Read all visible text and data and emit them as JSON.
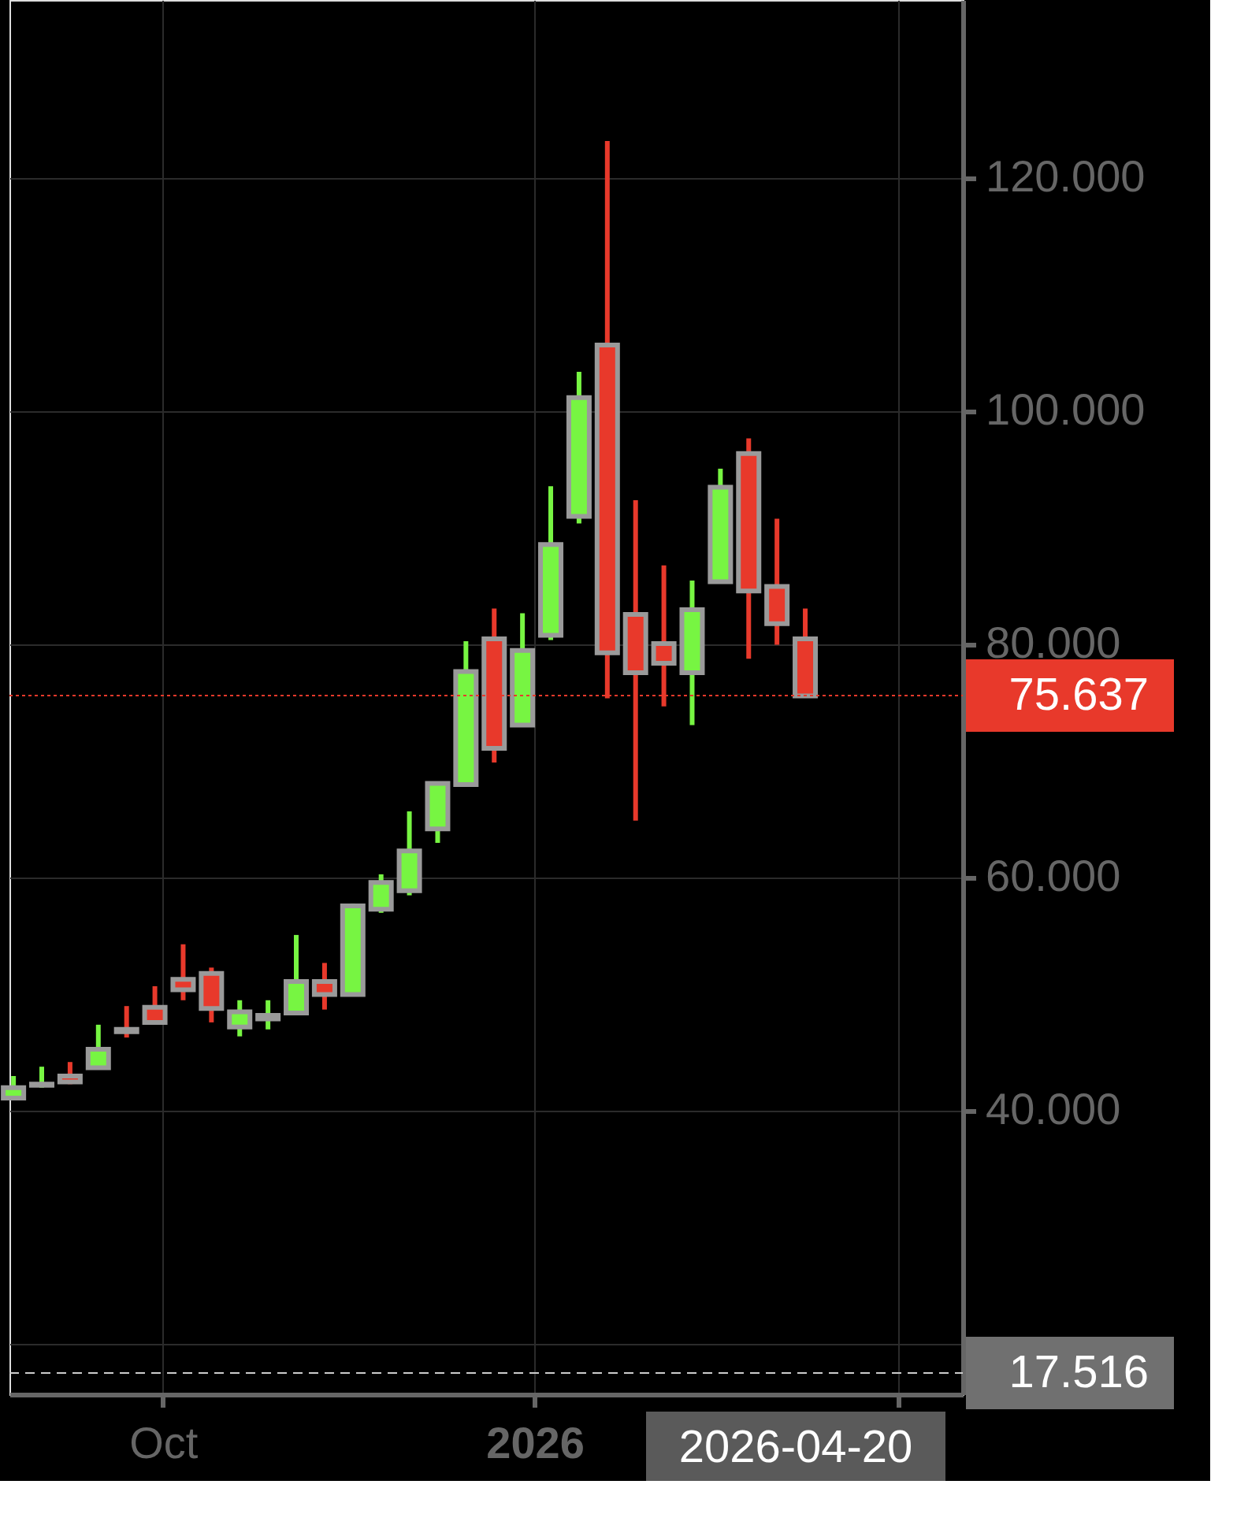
{
  "chart_data": {
    "type": "candlestick",
    "x": [
      "2025-08-25",
      "2025-09-01",
      "2025-09-08",
      "2025-09-15",
      "2025-09-22",
      "2025-09-29",
      "2025-10-06",
      "2025-10-13",
      "2025-10-20",
      "2025-10-27",
      "2025-11-03",
      "2025-11-10",
      "2025-11-17",
      "2025-11-24",
      "2025-12-01",
      "2025-12-08",
      "2025-12-15",
      "2025-12-22",
      "2025-12-29",
      "2026-01-05",
      "2026-01-12",
      "2026-01-19",
      "2026-01-26",
      "2026-02-02",
      "2026-02-09",
      "2026-02-16",
      "2026-02-23",
      "2026-03-02",
      "2026-03-09"
    ],
    "ohlc": [
      [
        41.1,
        43.0,
        41.0,
        42.0
      ],
      [
        42.2,
        43.8,
        42.0,
        42.3
      ],
      [
        43.0,
        44.2,
        42.3,
        42.5
      ],
      [
        43.7,
        47.4,
        43.6,
        45.3
      ],
      [
        47.0,
        49.0,
        46.3,
        46.8
      ],
      [
        48.9,
        50.7,
        47.5,
        47.6
      ],
      [
        51.3,
        54.3,
        49.5,
        50.4
      ],
      [
        51.8,
        52.3,
        47.6,
        48.8
      ],
      [
        47.2,
        49.5,
        46.4,
        48.5
      ],
      [
        47.9,
        49.5,
        47.0,
        48.2
      ],
      [
        48.4,
        55.1,
        48.3,
        51.1
      ],
      [
        51.1,
        52.7,
        48.7,
        50.0
      ],
      [
        50.0,
        57.8,
        49.9,
        57.6
      ],
      [
        57.3,
        60.3,
        57.0,
        59.6
      ],
      [
        58.9,
        65.7,
        58.5,
        62.3
      ],
      [
        64.2,
        68.2,
        63.0,
        68.1
      ],
      [
        68.0,
        80.3,
        67.9,
        77.7
      ],
      [
        80.5,
        83.1,
        69.9,
        71.1
      ],
      [
        73.1,
        82.7,
        73.0,
        79.5
      ],
      [
        80.8,
        93.6,
        80.4,
        88.6
      ],
      [
        91.0,
        103.4,
        90.4,
        101.2
      ],
      [
        105.7,
        123.2,
        75.4,
        79.3
      ],
      [
        82.6,
        92.4,
        64.9,
        77.6
      ],
      [
        80.1,
        86.8,
        74.7,
        78.4
      ],
      [
        77.6,
        85.5,
        73.1,
        83.0
      ],
      [
        85.4,
        95.1,
        85.3,
        93.5
      ],
      [
        96.4,
        97.7,
        78.8,
        84.6
      ],
      [
        85.0,
        90.8,
        80.0,
        81.8
      ],
      [
        80.5,
        83.1,
        75.6,
        75.6
      ]
    ],
    "colors": [
      "#77f542",
      "#77f542",
      "#e8392b",
      "#77f542",
      "#e8392b",
      "#e8392b",
      "#e8392b",
      "#e8392b",
      "#77f542",
      "#77f542",
      "#77f542",
      "#e8392b",
      "#77f542",
      "#77f542",
      "#77f542",
      "#77f542",
      "#77f542",
      "#e8392b",
      "#77f542",
      "#77f542",
      "#77f542",
      "#e8392b",
      "#e8392b",
      "#e8392b",
      "#77f542",
      "#77f542",
      "#e8392b",
      "#e8392b",
      "#e8392b"
    ],
    "xlim": [
      "2025-08-24",
      "2026-04-17"
    ],
    "xticks": [
      {
        "value": "2025-10-01",
        "label": "Oct"
      },
      {
        "value": "2026-01-01",
        "label": "2026"
      },
      {
        "value": "2026-04-01",
        "label": null
      }
    ],
    "ylim": [
      15.7,
      135.3
    ],
    "yticks": [
      {
        "value": 20,
        "label": null
      },
      {
        "value": 40,
        "label": "40.000"
      },
      {
        "value": 60,
        "label": "60.000"
      },
      {
        "value": 80,
        "label": "80.000"
      },
      {
        "value": 100,
        "label": "100.000"
      },
      {
        "value": 120,
        "label": "120.000"
      }
    ],
    "grid": true,
    "ref_lines": [
      {
        "axis": "y",
        "value": 75.637,
        "label": "75.637",
        "color": "#e8392b",
        "line_style": "dotted"
      },
      {
        "axis": "y",
        "value": 17.516,
        "label": "17.516",
        "color": "#cccccc",
        "line_style": "dashed"
      }
    ],
    "annotations": [
      "2026-04-20"
    ]
  }
}
